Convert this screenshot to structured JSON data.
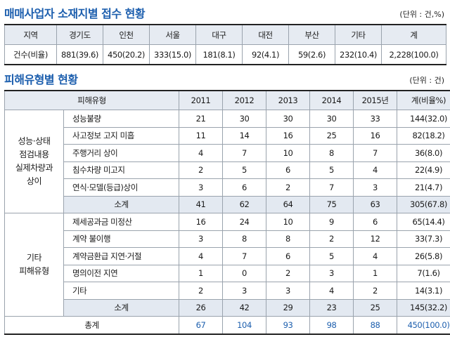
{
  "section1": {
    "title": "매매사업자 소재지별 접수 현황",
    "unit": "(단위 : 건,%)",
    "header": [
      "지역",
      "경기도",
      "인천",
      "서울",
      "대구",
      "대전",
      "부산",
      "기타",
      "계"
    ],
    "row": [
      "건수(비율)",
      "881(39.6)",
      "450(20.2)",
      "333(15.0)",
      "181(8.1)",
      "92(4.1)",
      "59(2.6)",
      "232(10.4)",
      "2,228(100.0)"
    ]
  },
  "section2": {
    "title": "피해유형별 현황",
    "unit": "(단위 : 건)",
    "header": [
      "피해유형",
      "2011",
      "2012",
      "2013",
      "2014",
      "2015년",
      "계(비율%)"
    ],
    "groups": [
      {
        "category": "성능·상태\n점검내용\n실제차량과\n상이",
        "rows": [
          {
            "label": "성능불량",
            "values": [
              "21",
              "30",
              "30",
              "30",
              "33",
              "144(32.0)"
            ]
          },
          {
            "label": "사고정보 고지 미흡",
            "values": [
              "11",
              "14",
              "16",
              "25",
              "16",
              "82(18.2)"
            ]
          },
          {
            "label": "주행거리 상이",
            "values": [
              "4",
              "7",
              "10",
              "8",
              "7",
              "36(8.0)"
            ]
          },
          {
            "label": "침수차량 미고지",
            "values": [
              "2",
              "5",
              "6",
              "5",
              "4",
              "22(4.9)"
            ]
          },
          {
            "label": "연식·모델(등급)상이",
            "values": [
              "3",
              "6",
              "2",
              "7",
              "3",
              "21(4.7)"
            ]
          }
        ],
        "subtotal": {
          "label": "소계",
          "values": [
            "41",
            "62",
            "64",
            "75",
            "63",
            "305(67.8)"
          ]
        }
      },
      {
        "category": "기타\n피해유형",
        "rows": [
          {
            "label": "제세공과금 미정산",
            "values": [
              "16",
              "24",
              "10",
              "9",
              "6",
              "65(14.4)"
            ]
          },
          {
            "label": "계약 불이행",
            "values": [
              "3",
              "8",
              "8",
              "2",
              "12",
              "33(7.3)"
            ]
          },
          {
            "label": "계약금환급 지연·거절",
            "values": [
              "4",
              "7",
              "6",
              "5",
              "4",
              "26(5.8)"
            ]
          },
          {
            "label": "명의이전 지연",
            "values": [
              "1",
              "0",
              "2",
              "3",
              "1",
              "7(1.6)"
            ]
          },
          {
            "label": "기타",
            "values": [
              "2",
              "3",
              "3",
              "4",
              "2",
              "14(3.1)"
            ]
          }
        ],
        "subtotal": {
          "label": "소계",
          "values": [
            "26",
            "42",
            "29",
            "23",
            "25",
            "145(32.2)"
          ]
        }
      }
    ],
    "total": {
      "label": "총계",
      "values": [
        "67",
        "104",
        "93",
        "98",
        "88",
        "450(100.0)"
      ]
    }
  }
}
